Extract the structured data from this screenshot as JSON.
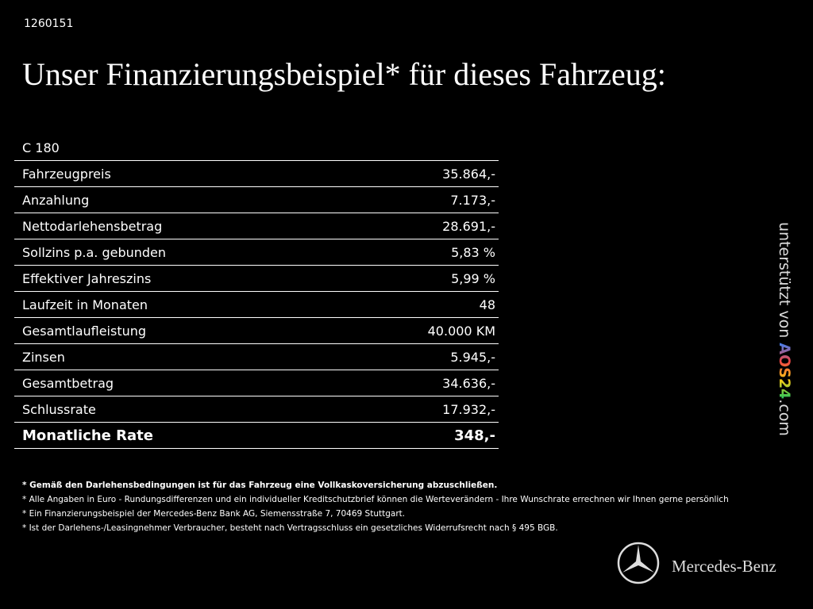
{
  "header": {
    "id": "1260151",
    "title": "Unser Finanzierungsbeispiel* für dieses Fahrzeug:"
  },
  "table": {
    "model": "C 180",
    "rows": [
      [
        "Fahrzeugpreis",
        "35.864,-"
      ],
      [
        "Anzahlung",
        "7.173,-"
      ],
      [
        "Nettodarlehensbetrag",
        "28.691,-"
      ],
      [
        "Sollzins p.a. gebunden",
        "5,83 %"
      ],
      [
        "Effektiver Jahreszins",
        "5,99 %"
      ],
      [
        "Laufzeit in Monaten",
        "48"
      ],
      [
        "Gesamtlaufleistung",
        "40.000 KM"
      ],
      [
        "Zinsen",
        "5.945,-"
      ],
      [
        "Gesamtbetrag",
        "34.636,-"
      ],
      [
        "Schlussrate",
        "17.932,-"
      ]
    ],
    "total": [
      "Monatliche Rate",
      "348,-"
    ]
  },
  "footnotes": [
    "* Gemäß den Darlehensbedingungen ist für das Fahrzeug eine Vollkaskoversicherung abzuschließen.",
    "* Alle Angaben in Euro - Rundungsdifferenzen und ein individueller Kreditschutzbrief können die Werteverändern - Ihre Wunschrate errechnen wir Ihnen gerne persönlich",
    "* Ein Finanzierungsbeispiel der Mercedes-Benz Bank AG, Siemensstraße 7, 70469 Stuttgart.",
    "* Ist der Darlehens-/Leasingnehmer Verbraucher, besteht nach Vertragsschluss ein gesetzliches Widerrufsrecht nach § 495 BGB."
  ],
  "sidebar": {
    "prefix": "unterstützt von",
    "brand": "AOS24",
    "suffix": ".com"
  },
  "logo": {
    "text": "Mercedes-Benz"
  }
}
